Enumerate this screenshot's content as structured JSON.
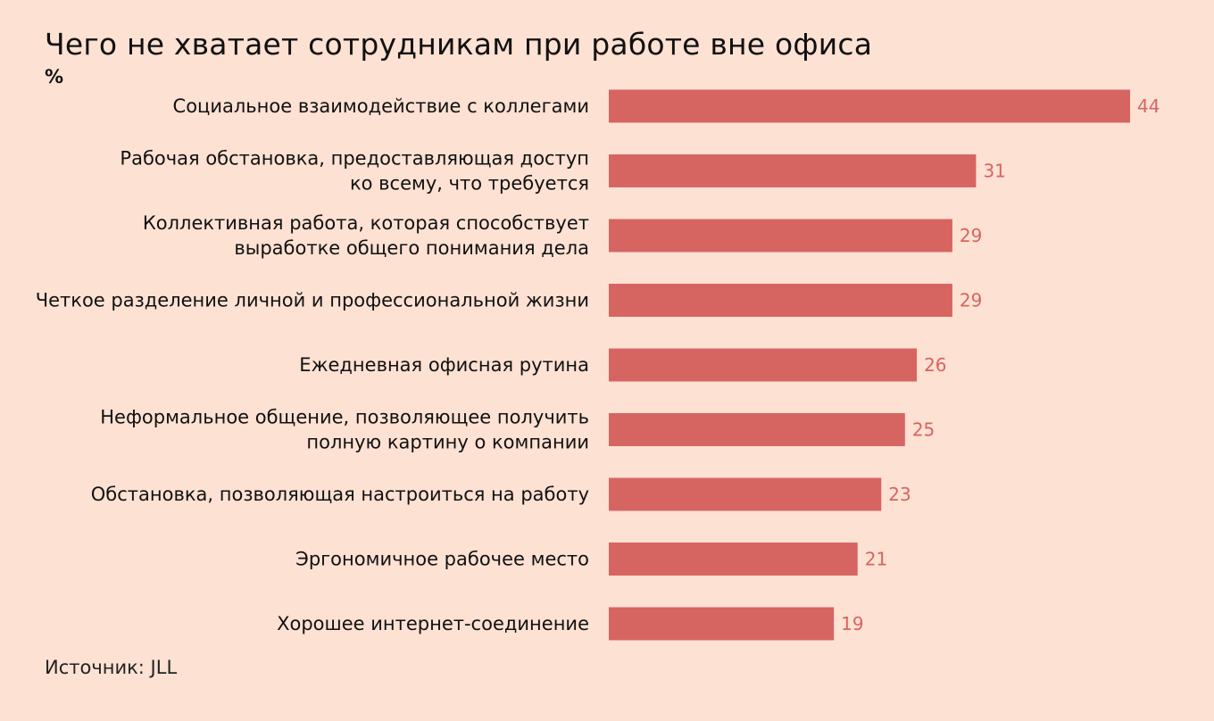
{
  "title": "Чего не хватает сотрудникам при работе вне офиса",
  "unit": "%",
  "source": "Источник: JLL",
  "colors": {
    "background": "#fde1d3",
    "bar": "#d66561",
    "value_label": "#d66561",
    "text": "#111111"
  },
  "chart_data": {
    "type": "bar",
    "orientation": "horizontal",
    "title": "Чего не хватает сотрудникам при работе вне офиса",
    "unit": "%",
    "categories": [
      [
        "Социальное взаимодействие с коллегами"
      ],
      [
        "Рабочая обстановка, предоставляющая доступ",
        "ко всему, что требуется"
      ],
      [
        "Коллективная работа, которая способствует",
        "выработке общего понимания дела"
      ],
      [
        "Четкое разделение личной и профессиональной жизни"
      ],
      [
        "Ежедневная офисная рутина"
      ],
      [
        "Неформальное общение, позволяющее получить",
        "полную картину о компании"
      ],
      [
        "Обстановка, позволяющая настроиться на работу"
      ],
      [
        "Эргономичное рабочее место"
      ],
      [
        "Хорошее интернет-соединение"
      ]
    ],
    "values": [
      44,
      31,
      29,
      29,
      26,
      25,
      23,
      21,
      19
    ],
    "xlim": [
      0,
      44
    ],
    "grid": false,
    "legend": "none"
  }
}
